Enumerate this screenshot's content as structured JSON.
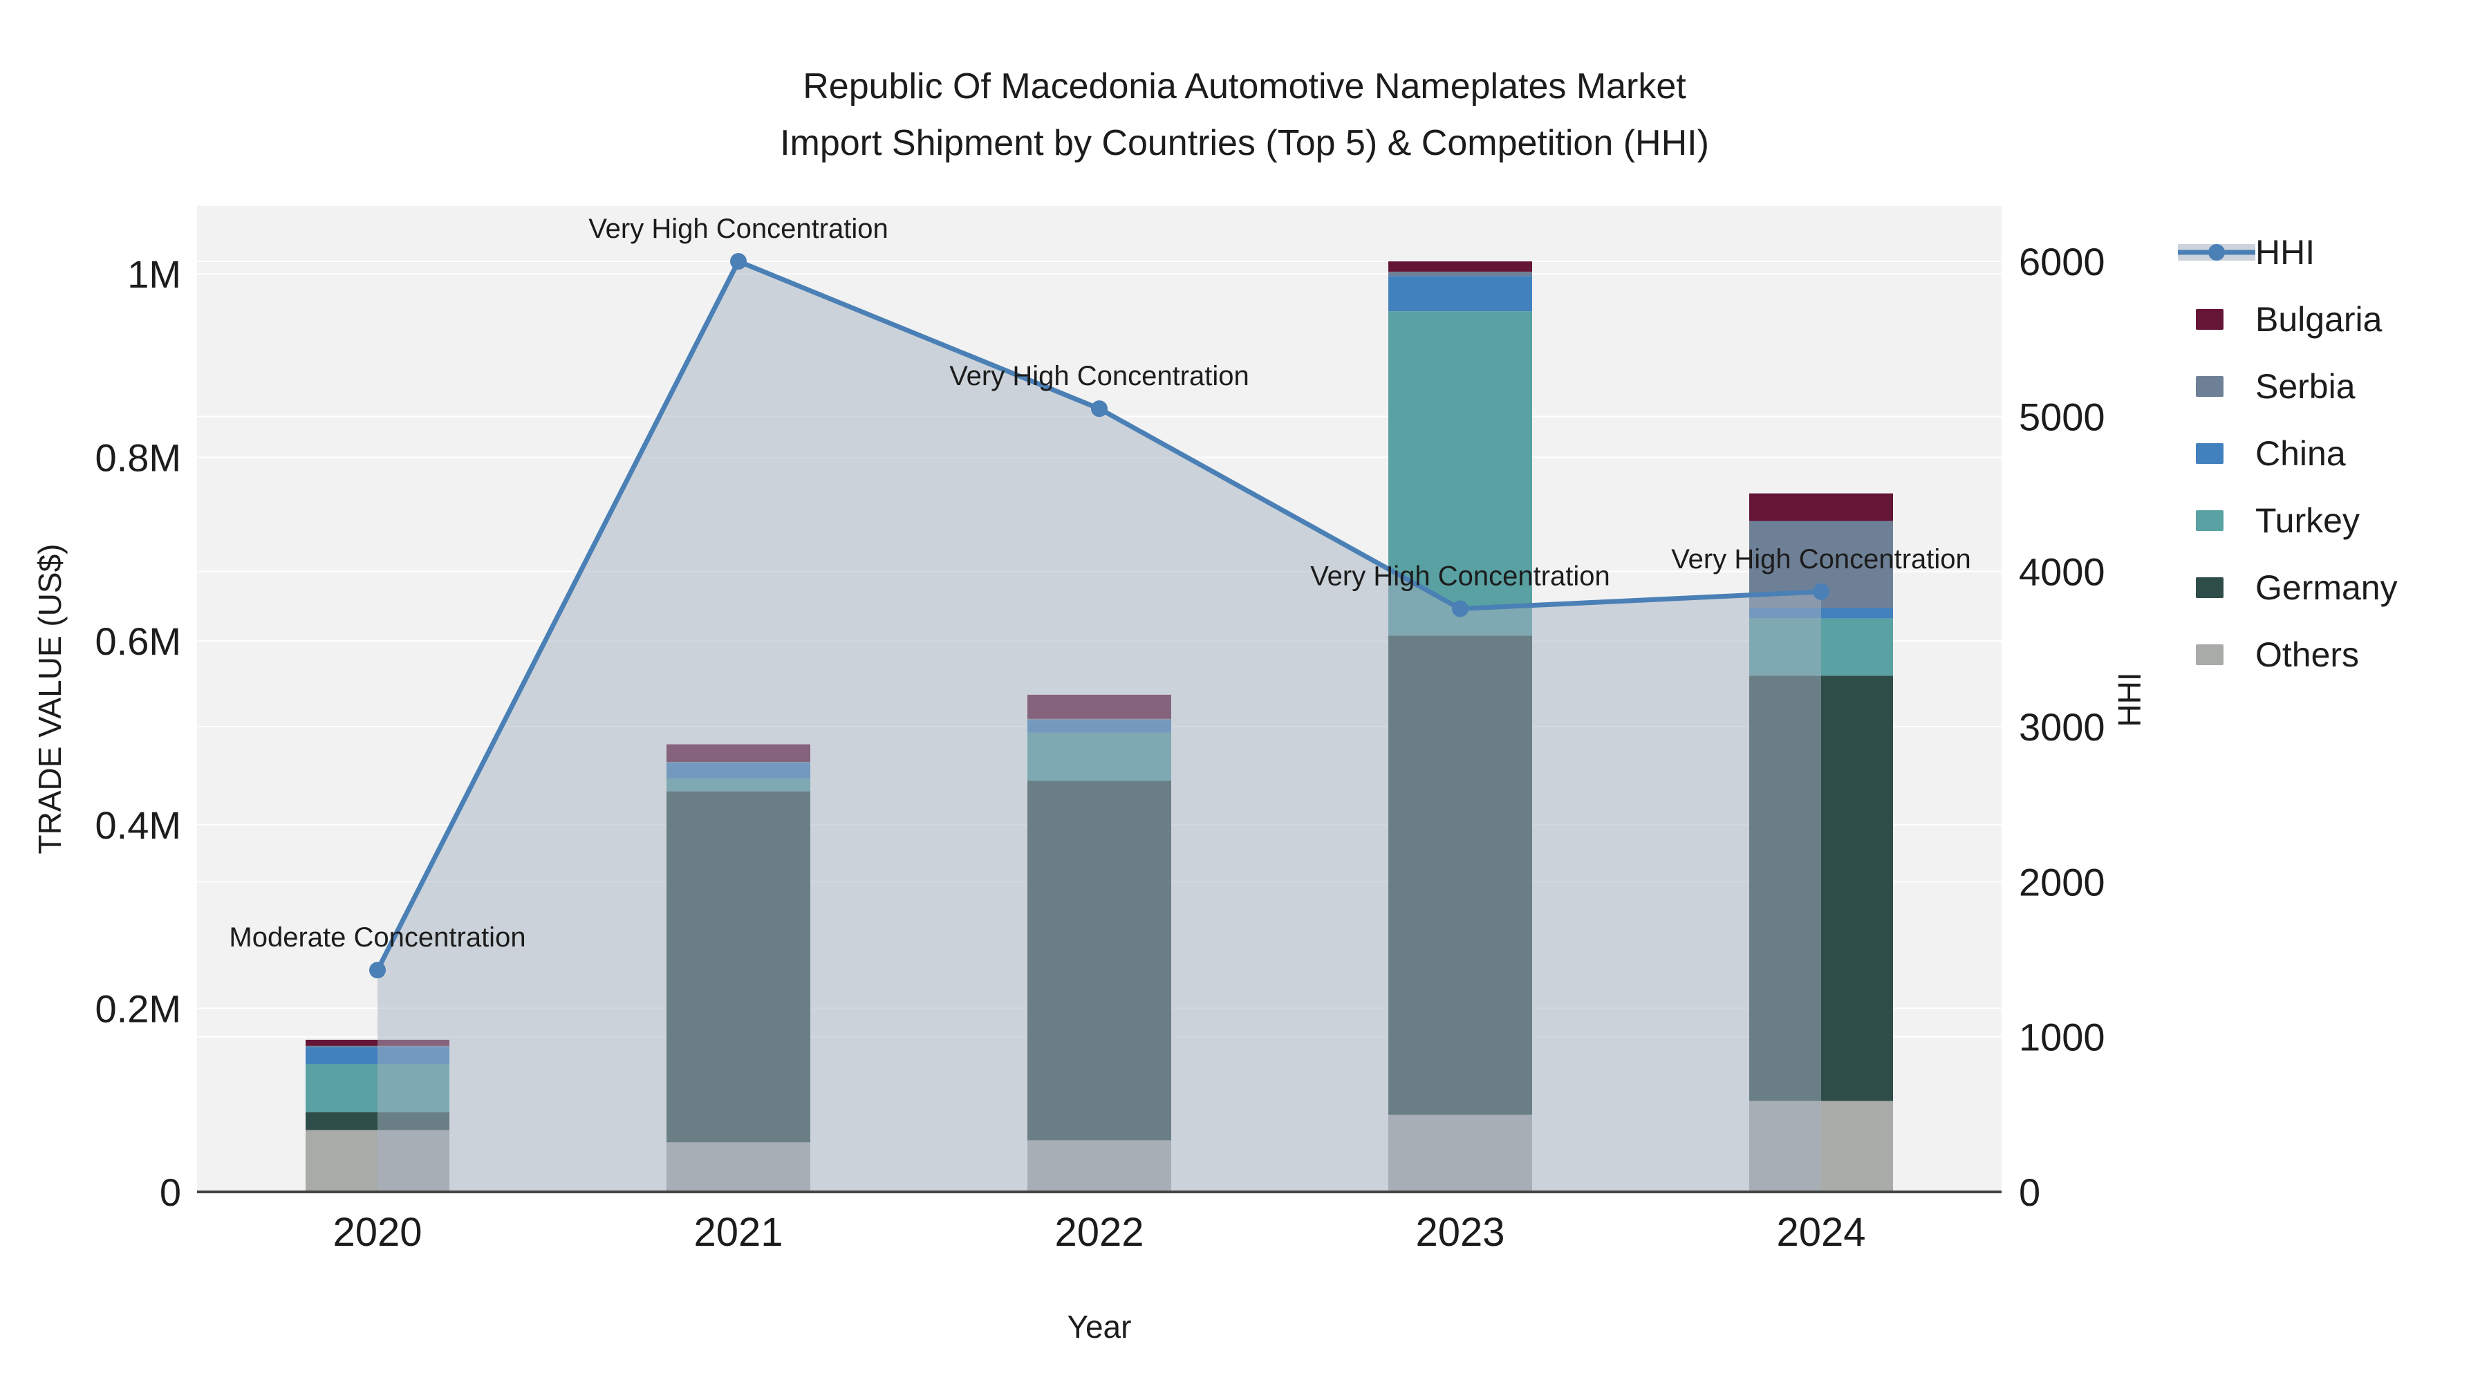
{
  "title": {
    "line1": "Republic Of Macedonia Automotive Nameplates Market",
    "line2": "Import Shipment by Countries (Top 5) & Competition (HHI)"
  },
  "axes": {
    "y_left_title": "TRADE VALUE (US$)",
    "y_right_title": "HHI",
    "x_title": "Year",
    "y_left_tick_labels": [
      "0",
      "0.2M",
      "0.4M",
      "0.6M",
      "0.8M",
      "1M"
    ],
    "y_left_tick_values": [
      0,
      200000,
      400000,
      600000,
      800000,
      1000000
    ],
    "y_right_tick_labels": [
      "0",
      "1000",
      "2000",
      "3000",
      "4000",
      "5000",
      "6000"
    ],
    "y_right_tick_values": [
      0,
      1000,
      2000,
      3000,
      4000,
      5000,
      6000
    ]
  },
  "legend": {
    "items": [
      {
        "label": "HHI",
        "type": "line",
        "color": "#4a80b5"
      },
      {
        "label": "Bulgaria",
        "type": "square",
        "color": "#651536"
      },
      {
        "label": "Serbia",
        "type": "square",
        "color": "#6e8096"
      },
      {
        "label": "China",
        "type": "square",
        "color": "#4181bd"
      },
      {
        "label": "Turkey",
        "type": "square",
        "color": "#59a1a3"
      },
      {
        "label": "Germany",
        "type": "square",
        "color": "#2e4d49"
      },
      {
        "label": "Others",
        "type": "square",
        "color": "#a9aba8"
      }
    ]
  },
  "chart_data": {
    "type": "bar+line",
    "title": "Republic Of Macedonia Automotive Nameplates Market Import Shipment by Countries (Top 5) & Competition (HHI)",
    "xlabel": "Year",
    "ylabel_left": "TRADE VALUE (US$)",
    "ylabel_right": "HHI",
    "categories": [
      "2020",
      "2021",
      "2022",
      "2023",
      "2024"
    ],
    "ylim_left": [
      0,
      1070000
    ],
    "ylim_right": [
      0,
      6360
    ],
    "grid": true,
    "legend_position": "right",
    "stacked_bar_series_bottom_to_top": [
      {
        "name": "Others",
        "color": "#a9aba8",
        "values": [
          67400,
          54000,
          56200,
          83900,
          99100
        ]
      },
      {
        "name": "Germany",
        "color": "#2e4d49",
        "values": [
          19500,
          382300,
          391700,
          522000,
          463200
        ]
      },
      {
        "name": "Turkey",
        "color": "#59a1a3",
        "values": [
          52400,
          13900,
          52400,
          353300,
          62400
        ]
      },
      {
        "name": "China",
        "color": "#4181bd",
        "values": [
          18700,
          17200,
          13500,
          38400,
          11200
        ]
      },
      {
        "name": "Serbia",
        "color": "#6e8096",
        "values": [
          1000,
          1000,
          1500,
          4700,
          94900
        ]
      },
      {
        "name": "Bulgaria",
        "color": "#651536",
        "values": [
          6700,
          19100,
          26200,
          11200,
          30000
        ]
      }
    ],
    "bar_totals": [
      165700,
      487500,
      541500,
      1013500,
      760800
    ],
    "line_series": {
      "name": "HHI",
      "color": "#4a80b5",
      "values": [
        1430,
        6000,
        5050,
        3760,
        3870
      ],
      "area_fill": "rgba(165,177,194,0.5)"
    },
    "annotations": [
      {
        "year": "2020",
        "label": "Moderate Concentration"
      },
      {
        "year": "2021",
        "label": "Very High Concentration"
      },
      {
        "year": "2022",
        "label": "Very High Concentration"
      },
      {
        "year": "2023",
        "label": "Very High Concentration"
      },
      {
        "year": "2024",
        "label": "Very High Concentration"
      }
    ],
    "colors": {
      "plot_background": "#f2f2f2",
      "gridline": "#ffffff",
      "axis_line": "#424242",
      "text": "#1c1c1c"
    }
  }
}
